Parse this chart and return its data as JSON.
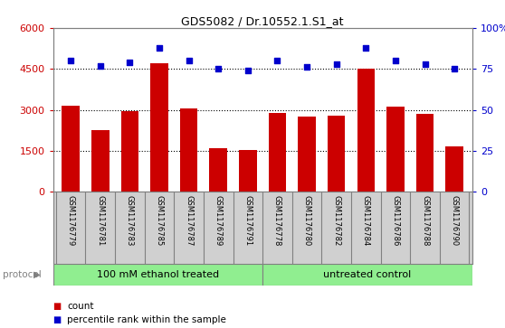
{
  "title": "GDS5082 / Dr.10552.1.S1_at",
  "samples": [
    "GSM1176779",
    "GSM1176781",
    "GSM1176783",
    "GSM1176785",
    "GSM1176787",
    "GSM1176789",
    "GSM1176791",
    "GSM1176778",
    "GSM1176780",
    "GSM1176782",
    "GSM1176784",
    "GSM1176786",
    "GSM1176788",
    "GSM1176790"
  ],
  "counts": [
    3150,
    2250,
    2950,
    4700,
    3050,
    1600,
    1520,
    2900,
    2750,
    2800,
    4520,
    3130,
    2870,
    1650
  ],
  "percentiles": [
    80,
    77,
    79,
    88,
    80,
    75,
    74,
    80,
    76,
    78,
    88,
    80,
    78,
    75
  ],
  "bar_color": "#CC0000",
  "dot_color": "#0000CC",
  "ylim_left": [
    0,
    6000
  ],
  "ylim_right": [
    0,
    100
  ],
  "yticks_left": [
    0,
    1500,
    3000,
    4500,
    6000
  ],
  "yticks_right": [
    0,
    25,
    50,
    75,
    100
  ],
  "ytick_labels_left": [
    "0",
    "1500",
    "3000",
    "4500",
    "6000"
  ],
  "ytick_labels_right": [
    "0",
    "25",
    "50",
    "75",
    "100%"
  ],
  "group1_label": "100 mM ethanol treated",
  "group2_label": "untreated control",
  "group1_count": 7,
  "group2_count": 7,
  "protocol_label": "protocol",
  "legend_count_label": "count",
  "legend_pct_label": "percentile rank within the sample",
  "group_bg_color": "#90EE90",
  "xtick_bg_color": "#D0D0D0",
  "grid_color": "#000000",
  "tick_color_left": "#CC0000",
  "tick_color_right": "#0000CC",
  "spine_color": "#808080"
}
